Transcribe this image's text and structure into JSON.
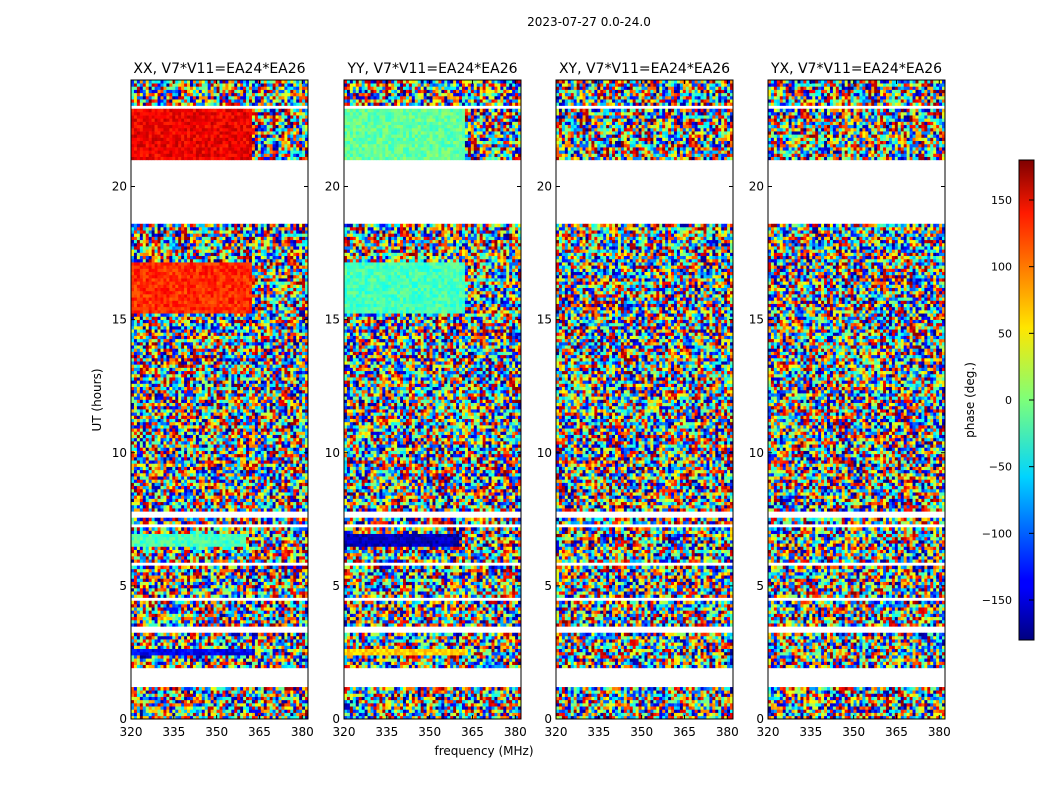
{
  "figure": {
    "suptitle": "2023-07-27 0.0-24.0",
    "xlabel": "frequency (MHz)",
    "ylabel": "UT (hours)",
    "colorbar_label": "phase (deg.)"
  },
  "chart_data": {
    "type": "heatmap",
    "panels": [
      {
        "title": "XX, V7*V11=EA24*EA26",
        "product": "XX"
      },
      {
        "title": "YY, V7*V11=EA24*EA26",
        "product": "YY"
      },
      {
        "title": "XY, V7*V11=EA24*EA26",
        "product": "XY"
      },
      {
        "title": "YX, V7*V11=EA24*EA26",
        "product": "YX"
      }
    ],
    "x_axis": {
      "label": "frequency (MHz)",
      "range": [
        320,
        382
      ],
      "ticks": [
        320,
        335,
        350,
        365,
        380
      ]
    },
    "y_axis": {
      "label": "UT (hours)",
      "range": [
        0,
        24
      ],
      "ticks": [
        0,
        5,
        10,
        15,
        20
      ]
    },
    "colorbar": {
      "label": "phase (deg.)",
      "range": [
        -180,
        180
      ],
      "ticks": [
        -150,
        -100,
        -50,
        0,
        50,
        100,
        150
      ],
      "colormap": "jet"
    },
    "flagged_time_ranges_hours": [
      [
        1.25,
        1.4
      ],
      [
        1.5,
        1.95
      ],
      [
        3.3,
        3.45
      ],
      [
        4.45,
        4.55
      ],
      [
        5.75,
        5.9
      ],
      [
        7.15,
        7.35
      ],
      [
        7.55,
        7.75
      ],
      [
        18.65,
        20.6
      ],
      [
        20.7,
        21.0
      ],
      [
        22.9,
        23.05
      ]
    ],
    "coherent_phase_segments": [
      {
        "panel": "XX",
        "ut": [
          2.35,
          2.6
        ],
        "phase_deg": -140,
        "freq_max": 363
      },
      {
        "panel": "XX",
        "ut": [
          6.5,
          7.0
        ],
        "phase_deg": -20,
        "freq_max": 360
      },
      {
        "panel": "XX",
        "ut": [
          15.2,
          17.2
        ],
        "phase_deg": 120,
        "freq_max": 362
      },
      {
        "panel": "XX",
        "ut": [
          21.0,
          23.0
        ],
        "phase_deg": 140,
        "freq_max": 362
      },
      {
        "panel": "YY",
        "ut": [
          2.35,
          2.6
        ],
        "phase_deg": 60,
        "freq_max": 363
      },
      {
        "panel": "YY",
        "ut": [
          6.5,
          7.0
        ],
        "phase_deg": -160,
        "freq_max": 360
      },
      {
        "panel": "YY",
        "ut": [
          15.2,
          17.2
        ],
        "phase_deg": -20,
        "freq_max": 362
      },
      {
        "panel": "YY",
        "ut": [
          21.0,
          23.0
        ],
        "phase_deg": -10,
        "freq_max": 362
      }
    ]
  }
}
